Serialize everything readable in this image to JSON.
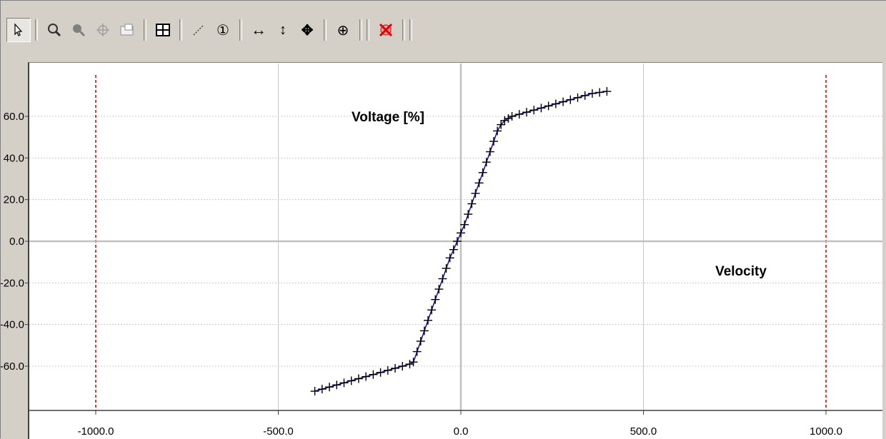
{
  "toolbar": {
    "buttons": [
      {
        "name": "select-arrow-icon",
        "active": true
      },
      {
        "name": "zoom-icon"
      },
      {
        "name": "zoom-rect-icon"
      },
      {
        "name": "pan-icon"
      },
      {
        "name": "copy-icon"
      },
      {
        "name": "fit-grid-icon"
      },
      {
        "name": "line-fit-icon"
      },
      {
        "name": "marker-1-icon",
        "glyph": "①"
      },
      {
        "name": "h-scale-icon",
        "glyph": "↔"
      },
      {
        "name": "v-scale-icon",
        "glyph": "↕"
      },
      {
        "name": "move-icon",
        "glyph": "✥"
      },
      {
        "name": "crosshair-icon",
        "glyph": "⊕"
      },
      {
        "name": "clear-red-icon"
      }
    ]
  },
  "colors": {
    "curve": "#1010a0",
    "marker": "#000000",
    "limit_line": "#cc0000",
    "grid": "#c8c8c8"
  },
  "chart_data": {
    "type": "line",
    "title": "",
    "xlabel": "Velocity",
    "ylabel": "Voltage [%]",
    "xlim": [
      -1000,
      1000
    ],
    "ylim": [
      -80,
      80
    ],
    "x_ticks": [
      -1000,
      -500,
      0,
      500,
      1000
    ],
    "x_tick_labels": [
      "-1000.0",
      "-500.0",
      "0.0",
      "500.0",
      "1000.0"
    ],
    "y_ticks": [
      -60,
      -40,
      -20,
      0,
      20,
      40,
      60
    ],
    "y_tick_labels": [
      "-60.0",
      "-40.0",
      "-20.0",
      "0.0",
      "20.0",
      "40.0",
      "60.0"
    ],
    "grid": true,
    "limit_lines_x": [
      -1000,
      1000
    ],
    "series": [
      {
        "name": "",
        "marker": "+",
        "x": [
          -400,
          -380,
          -360,
          -340,
          -320,
          -300,
          -280,
          -260,
          -240,
          -220,
          -200,
          -180,
          -160,
          -140,
          -130,
          -120,
          -110,
          -100,
          -90,
          -80,
          -70,
          -60,
          -50,
          -40,
          -30,
          -20,
          -10,
          0,
          10,
          20,
          30,
          40,
          50,
          60,
          70,
          80,
          90,
          100,
          110,
          120,
          130,
          140,
          160,
          180,
          200,
          220,
          240,
          260,
          280,
          300,
          320,
          340,
          360,
          380,
          400
        ],
        "y": [
          -72,
          -71,
          -70,
          -69,
          -68,
          -67,
          -66,
          -65,
          -64,
          -63,
          -62,
          -61,
          -60,
          -59,
          -58,
          -53,
          -48,
          -43,
          -38,
          -33,
          -28,
          -23,
          -18,
          -13,
          -8,
          -4,
          0,
          4,
          8,
          13,
          18,
          23,
          28,
          33,
          38,
          43,
          48,
          53,
          56,
          58,
          59,
          60,
          61,
          62,
          63,
          64,
          65,
          66,
          67,
          68,
          69,
          70,
          71,
          71.5,
          72
        ]
      }
    ]
  }
}
